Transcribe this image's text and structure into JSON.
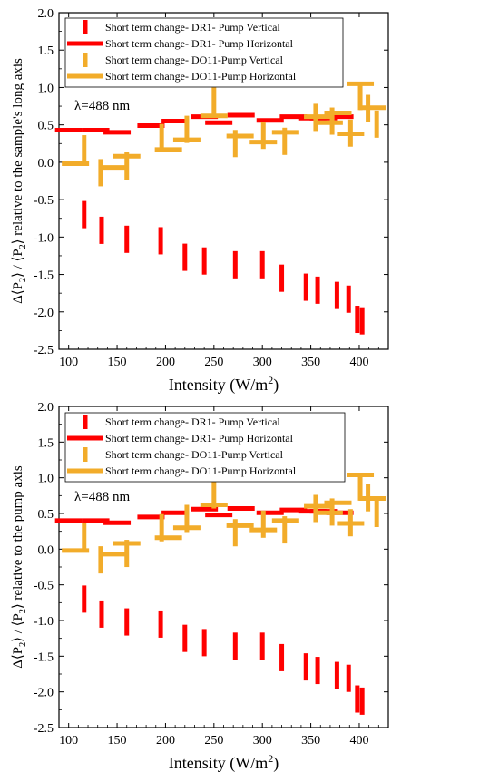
{
  "colors": {
    "red": "#ff0000",
    "orange": "#f2ac2a",
    "frame": "#000000"
  },
  "chart_data": [
    {
      "type": "scatter",
      "title": "",
      "xlabel": "Intensity (W/m²)",
      "ylabel": "Δ⟨P₂⟩ / ⟨P₂⟩ relative to the sample's long axis",
      "ylabel_parts": {
        "pre": "Δ⟨P",
        "sub1": "2",
        "mid": "⟩ / ⟨P",
        "sub2": "2",
        "post": "⟩ relative to the sample's long axis"
      },
      "annotation": "λ=488 nm",
      "xlim": [
        90,
        430
      ],
      "ylim": [
        -2.5,
        2.0
      ],
      "xticks": [
        100,
        150,
        200,
        250,
        300,
        350,
        400
      ],
      "yticks": [
        -2.5,
        -2.0,
        -1.5,
        -1.0,
        -0.5,
        0.0,
        0.5,
        1.0,
        1.5,
        2.0
      ],
      "tick_labels_x": [
        "100",
        "150",
        "200",
        "250",
        "300",
        "350",
        "400"
      ],
      "tick_labels_y": [
        "-2.5",
        "-2.0",
        "-1.5",
        "-1.0",
        "-0.5",
        "0.0",
        "0.5",
        "1.0",
        "1.5",
        "2.0"
      ],
      "legend_position": "top-left",
      "series": [
        {
          "name": "Short term change- DR1- Pump Vertical",
          "marker": "vbar",
          "color": "#ff0000",
          "x": [
            116,
            134,
            160,
            195,
            220,
            240,
            272,
            300,
            320,
            345,
            357,
            377,
            389,
            398,
            403
          ],
          "y": [
            -0.7,
            -0.91,
            -1.03,
            -1.05,
            -1.27,
            -1.32,
            -1.37,
            -1.37,
            -1.55,
            -1.67,
            -1.71,
            -1.78,
            -1.83,
            -2.1,
            -2.12
          ]
        },
        {
          "name": "Short term change- DR1- Pump Horizontal",
          "marker": "hbar",
          "color": "#ff0000",
          "x": [
            100,
            128,
            150,
            185,
            210,
            240,
            255,
            278,
            308,
            332,
            352,
            363,
            380
          ],
          "y": [
            0.43,
            0.43,
            0.4,
            0.49,
            0.55,
            0.61,
            0.53,
            0.63,
            0.56,
            0.61,
            0.59,
            0.59,
            0.61
          ]
        },
        {
          "name": "Short term change- DO11-Pump Vertical",
          "marker": "vbar",
          "color": "#f2ac2a",
          "x": [
            116,
            133,
            160,
            196,
            222,
            250,
            272,
            301,
            323,
            355,
            372,
            391,
            401,
            409,
            418
          ],
          "y": [
            0.18,
            -0.14,
            -0.05,
            0.33,
            0.44,
            0.82,
            0.25,
            0.36,
            0.28,
            0.6,
            0.55,
            0.39,
            0.88,
            0.72,
            0.51
          ]
        },
        {
          "name": "Short term change- DO11-Pump Horizontal",
          "marker": "hbar",
          "color": "#f2ac2a",
          "x": [
            107,
            145,
            160,
            203,
            222,
            250,
            277,
            301,
            324,
            357,
            369,
            378,
            391,
            401,
            414
          ],
          "y": [
            -0.02,
            -0.07,
            0.08,
            0.17,
            0.3,
            0.62,
            0.35,
            0.27,
            0.4,
            0.61,
            0.53,
            0.66,
            0.38,
            1.05,
            0.73
          ]
        }
      ]
    },
    {
      "type": "scatter",
      "title": "",
      "xlabel": "Intensity (W/m²)",
      "ylabel": "Δ⟨P₂⟩ / ⟨P₂⟩ relative to the pump axis",
      "ylabel_parts": {
        "pre": "Δ⟨P",
        "sub1": "2",
        "mid": "⟩ / ⟨P",
        "sub2": "2",
        "post": "⟩ relative to the pump axis"
      },
      "annotation": "λ=488 nm",
      "xlim": [
        90,
        430
      ],
      "ylim": [
        -2.5,
        2.0
      ],
      "xticks": [
        100,
        150,
        200,
        250,
        300,
        350,
        400
      ],
      "yticks": [
        -2.5,
        -2.0,
        -1.5,
        -1.0,
        -0.5,
        0.0,
        0.5,
        1.0,
        1.5,
        2.0
      ],
      "tick_labels_x": [
        "100",
        "150",
        "200",
        "250",
        "300",
        "350",
        "400"
      ],
      "tick_labels_y": [
        "-2.5",
        "-2.0",
        "-1.5",
        "-1.0",
        "-0.5",
        "0.0",
        "0.5",
        "1.0",
        "1.5",
        "2.0"
      ],
      "legend_position": "top-left",
      "series": [
        {
          "name": "Short term change- DR1- Pump Vertical",
          "marker": "vbar",
          "color": "#ff0000",
          "x": [
            116,
            134,
            160,
            195,
            220,
            240,
            272,
            300,
            320,
            345,
            357,
            377,
            389,
            398,
            403
          ],
          "y": [
            -0.7,
            -0.91,
            -1.02,
            -1.05,
            -1.25,
            -1.31,
            -1.36,
            -1.36,
            -1.52,
            -1.65,
            -1.7,
            -1.77,
            -1.81,
            -2.1,
            -2.13
          ]
        },
        {
          "name": "Short term change- DR1- Pump Horizontal",
          "marker": "hbar",
          "color": "#ff0000",
          "x": [
            100,
            128,
            150,
            185,
            210,
            240,
            255,
            278,
            308,
            332,
            352,
            363,
            380
          ],
          "y": [
            0.4,
            0.4,
            0.37,
            0.45,
            0.51,
            0.56,
            0.48,
            0.57,
            0.51,
            0.55,
            0.53,
            0.53,
            0.51
          ]
        },
        {
          "name": "Short term change- DO11-Pump Vertical",
          "marker": "vbar",
          "color": "#f2ac2a",
          "x": [
            116,
            133,
            160,
            196,
            222,
            250,
            272,
            301,
            323,
            355,
            372,
            391,
            401,
            409,
            418
          ],
          "y": [
            0.18,
            -0.15,
            -0.06,
            0.3,
            0.43,
            0.76,
            0.23,
            0.35,
            0.27,
            0.57,
            0.52,
            0.37,
            0.87,
            0.72,
            0.5
          ]
        },
        {
          "name": "Short term change- DO11-Pump Horizontal",
          "marker": "hbar",
          "color": "#f2ac2a",
          "x": [
            107,
            145,
            160,
            203,
            222,
            250,
            277,
            301,
            324,
            357,
            369,
            378,
            391,
            401,
            414
          ],
          "y": [
            -0.02,
            -0.07,
            0.08,
            0.16,
            0.3,
            0.62,
            0.33,
            0.27,
            0.4,
            0.6,
            0.51,
            0.65,
            0.36,
            1.04,
            0.71
          ]
        }
      ]
    }
  ]
}
